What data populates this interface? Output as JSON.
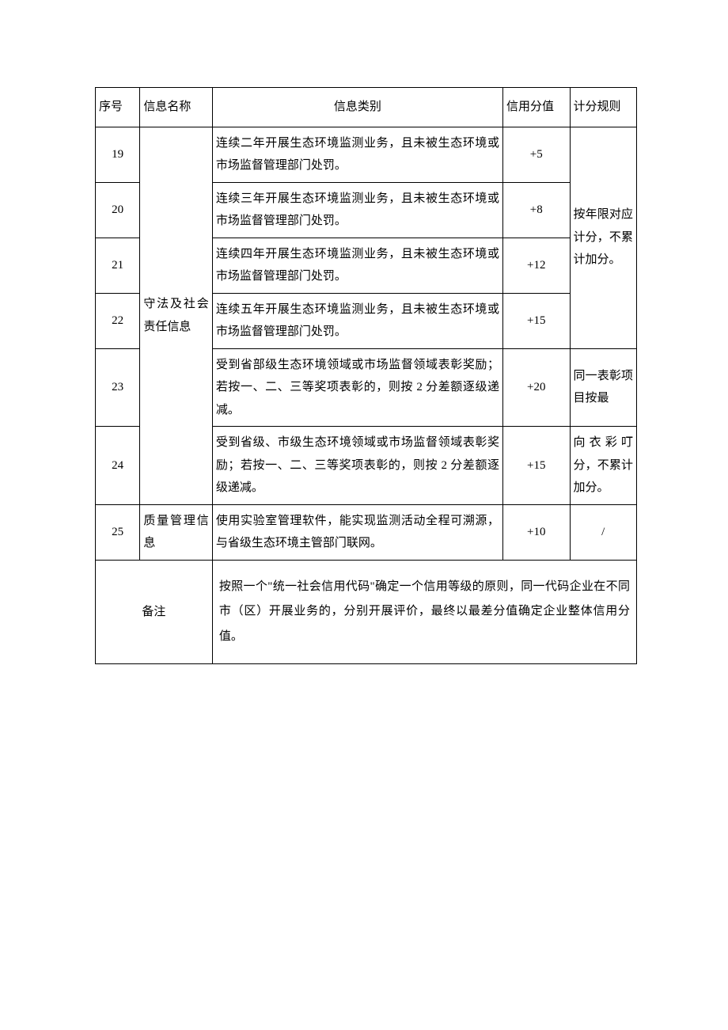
{
  "table": {
    "headers": {
      "seq": "序号",
      "name": "信息名称",
      "category": "信息类别",
      "score": "信用分值",
      "rule": "计分规则"
    },
    "rows": [
      {
        "seq": "19",
        "category": "连续二年开展生态环境监测业务，且未被生态环境或市场监督管理部门处罚。",
        "score": "+5"
      },
      {
        "seq": "20",
        "category": "连续三年开展生态环境监测业务，且未被生态环境或市场监督管理部门处罚。",
        "score": "+8"
      },
      {
        "seq": "21",
        "category": "连续四年开展生态环境监测业务，且未被生态环境或市场监督管理部门处罚。",
        "score": "+12"
      },
      {
        "seq": "22",
        "category": "连续五年开展生态环境监测业务，且未被生态环境或市场监督管理部门处罚。",
        "score": "+15"
      },
      {
        "seq": "23",
        "category": "受到省部级生态环境领域或市场监督领域表彰奖励；若按一、二、三等奖项表彰的，则按 2 分差额逐级递减。",
        "score": "+20"
      },
      {
        "seq": "24",
        "category": "受到省级、市级生态环境领域或市场监督领域表彰奖励；若按一、二、三等奖项表彰的，则按 2 分差额逐级递减。",
        "score": "+15"
      },
      {
        "seq": "25",
        "category": "使用实验室管理软件，能实现监测活动全程可溯源，与省级生态环境主管部门联网。",
        "score": "+10"
      }
    ],
    "nameGroups": {
      "group1": "守法及社会责任信息",
      "group2": "质量管理信息"
    },
    "ruleGroups": {
      "rule1": "按年限对应计分，不累计加分。",
      "rule2": "同一表彰项目按最",
      "rule3": "向衣彩叮分，不累计加分。",
      "rule4": "/"
    },
    "remark": {
      "label": "备注",
      "content": "按照一个\"统一社会信用代码\"确定一个信用等级的原则，同一代码企业在不同市（区）开展业务的，分别开展评价，最终以最差分值确定企业整体信用分值。"
    }
  }
}
